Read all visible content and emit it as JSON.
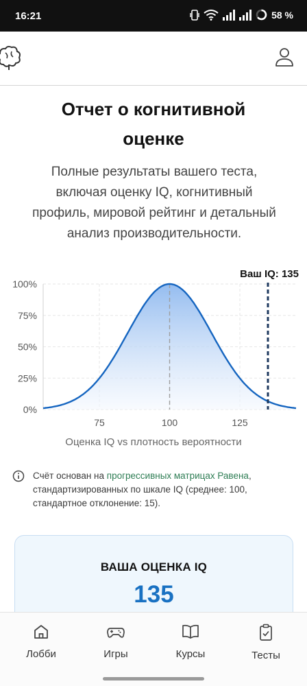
{
  "status_bar": {
    "time": "16:21",
    "battery": "58 %"
  },
  "header": {
    "logo_icon": "brain-icon",
    "profile_icon": "user-icon"
  },
  "report": {
    "title_line1": "Отчет о когнитивной",
    "title_line2": "оценке",
    "subtitle_line1": "Полные результаты вашего теста,",
    "subtitle_line2": "включая оценку IQ, когнитивный",
    "subtitle_line3": "профиль, мировой рейтинг и детальный",
    "subtitle_line4": "анализ производительности."
  },
  "chart_data": {
    "type": "area",
    "title": "",
    "xlabel": "Оценка IQ vs плотность вероятности",
    "ylabel": "",
    "xlim": [
      55,
      145
    ],
    "ylim": [
      0,
      100
    ],
    "x_ticks": [
      75,
      100,
      125
    ],
    "y_ticks": [
      "0%",
      "25%",
      "50%",
      "75%",
      "100%"
    ],
    "distribution": {
      "mean": 100,
      "sd": 15
    },
    "series": [
      {
        "x": [
          55,
          60,
          65,
          70,
          75,
          80,
          85,
          90,
          95,
          100,
          105,
          110,
          115,
          120,
          125,
          130,
          135,
          140,
          145
        ],
        "values": [
          1.1,
          2.9,
          6.6,
          13.5,
          25,
          41.1,
          60.7,
          80.1,
          94.6,
          100,
          94.6,
          80.1,
          60.7,
          41.1,
          25,
          13.5,
          6.6,
          2.9,
          1.1
        ]
      }
    ],
    "marker": {
      "x": 135,
      "label": "Ваш IQ: 135"
    },
    "grid": true,
    "colors": {
      "line": "#1565c0",
      "fill_top": "#8fb9ef",
      "fill_bottom": "#f4f8fe",
      "marker": "#1f3a5f",
      "mean_line": "#9e9e9e"
    }
  },
  "info": {
    "icon": "info-circle-icon",
    "text_before": "Счёт основан на",
    "link_text": "прогрессивных матрицах Равена",
    "text_after": ", стандартизированных по шкале IQ (среднее: 100, стандартное отклонение: 15)."
  },
  "score_card": {
    "label": "ВАША ОЦЕНКА IQ",
    "value": "135"
  },
  "nav": {
    "items": [
      {
        "label": "Лобби",
        "icon": "home-icon"
      },
      {
        "label": "Игры",
        "icon": "gamepad-icon"
      },
      {
        "label": "Курсы",
        "icon": "book-icon"
      },
      {
        "label": "Тесты",
        "icon": "clipboard-icon"
      }
    ]
  }
}
